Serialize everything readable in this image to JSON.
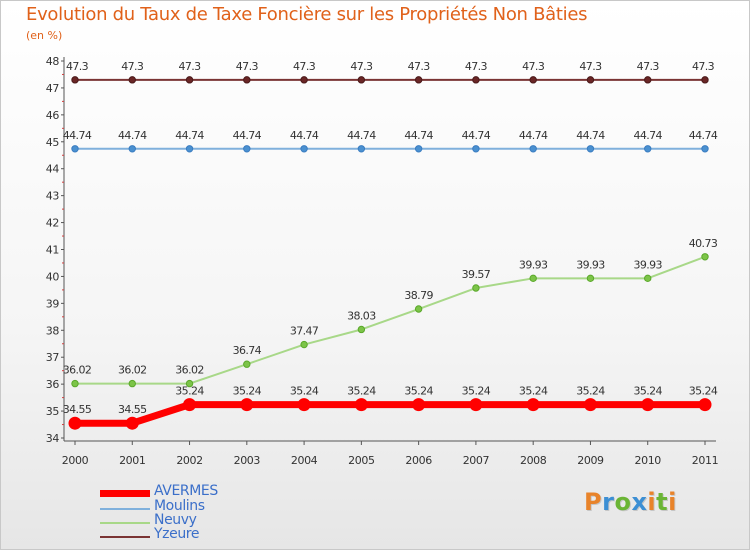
{
  "header": {
    "title": "Evolution du Taux de Taxe Foncière sur les Propriétés Non Bâties",
    "subtitle": "(en %)"
  },
  "logo": {
    "letters": [
      "P",
      "r",
      "o",
      "x",
      "i",
      "t",
      "i"
    ],
    "colors": [
      "#e8832a",
      "#3c8fd4",
      "#6bb535",
      "#3c8fd4",
      "#e8832a",
      "#6bb535",
      "#e8832a"
    ]
  },
  "chart_data": {
    "type": "line",
    "title": "Evolution du Taux de Taxe Foncière sur les Propriétés Non Bâties",
    "ylabel": "(en %)",
    "xlabel": "",
    "x": [
      "2000",
      "2001",
      "2002",
      "2003",
      "2004",
      "2005",
      "2006",
      "2007",
      "2008",
      "2009",
      "2010",
      "2011"
    ],
    "ylim": [
      34,
      48
    ],
    "yticks": [
      34,
      35,
      36,
      37,
      38,
      39,
      40,
      41,
      42,
      43,
      44,
      45,
      46,
      47,
      48
    ],
    "grid": false,
    "legend_position": "bottom-left",
    "series": [
      {
        "name": "AVERMES",
        "color": "#ff0000",
        "values": [
          34.55,
          34.55,
          35.24,
          35.24,
          35.24,
          35.24,
          35.24,
          35.24,
          35.24,
          35.24,
          35.24,
          35.24
        ],
        "labels": [
          "34.55",
          "34.55",
          "35.24",
          "35.24",
          "35.24",
          "35.24",
          "35.24",
          "35.24",
          "35.24",
          "35.24",
          "35.24",
          "35.24"
        ]
      },
      {
        "name": "Moulins",
        "color": "#7fb0dc",
        "values": [
          44.74,
          44.74,
          44.74,
          44.74,
          44.74,
          44.74,
          44.74,
          44.74,
          44.74,
          44.74,
          44.74,
          44.74
        ],
        "labels": [
          "44.74",
          "44.74",
          "44.74",
          "44.74",
          "44.74",
          "44.74",
          "44.74",
          "44.74",
          "44.74",
          "44.74",
          "44.74",
          "44.74"
        ]
      },
      {
        "name": "Neuvy",
        "color": "#a8d888",
        "values": [
          36.02,
          36.02,
          36.02,
          36.74,
          37.47,
          38.03,
          38.79,
          39.57,
          39.93,
          39.93,
          39.93,
          40.73
        ],
        "labels": [
          "36.02",
          "36.02",
          "36.02",
          "36.74",
          "37.47",
          "38.03",
          "38.79",
          "39.57",
          "39.93",
          "39.93",
          "39.93",
          "40.73"
        ]
      },
      {
        "name": "Yzeure",
        "color": "#7a3434",
        "values": [
          47.3,
          47.3,
          47.3,
          47.3,
          47.3,
          47.3,
          47.3,
          47.3,
          47.3,
          47.3,
          47.3,
          47.3
        ],
        "labels": [
          "47.3",
          "47.3",
          "47.3",
          "47.3",
          "47.3",
          "47.3",
          "47.3",
          "47.3",
          "47.3",
          "47.3",
          "47.3",
          "47.3"
        ]
      }
    ]
  }
}
